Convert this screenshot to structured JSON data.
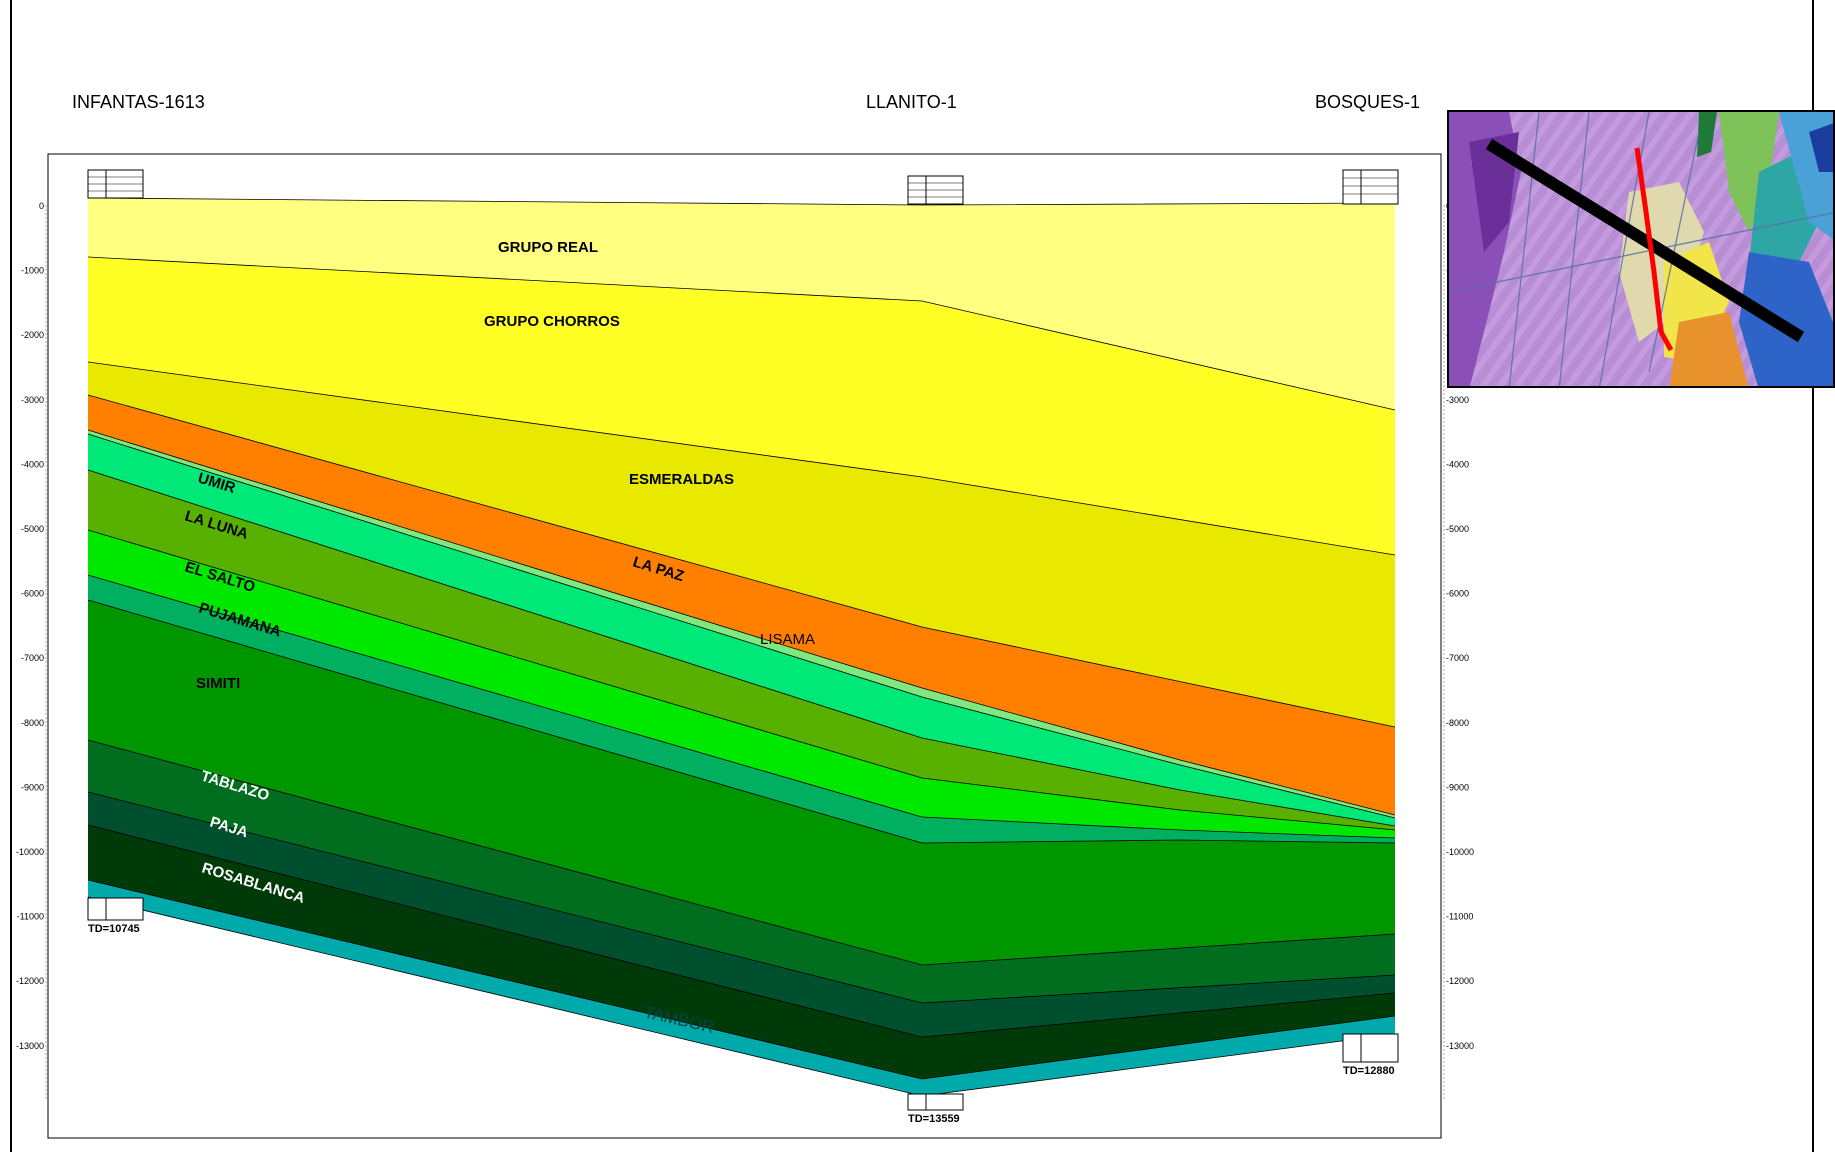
{
  "wells": [
    {
      "name": "INFANTAS-1613",
      "td_label": "TD=10745"
    },
    {
      "name": "LLANITO-1",
      "td_label": "TD=13559"
    },
    {
      "name": "BOSQUES-1",
      "td_label": "TD=12880"
    }
  ],
  "depth_ticks": [
    "0",
    "-1000",
    "-2000",
    "-3000",
    "-4000",
    "-5000",
    "-6000",
    "-7000",
    "-8000",
    "-9000",
    "-10000",
    "-11000",
    "-12000",
    "-13000"
  ],
  "formations": [
    {
      "name": "GRUPO REAL",
      "color": "#FFFF80"
    },
    {
      "name": "GRUPO CHORROS",
      "color": "#FFFF26"
    },
    {
      "name": "ESMERALDAS",
      "color": "#E8E800"
    },
    {
      "name": "LA PAZ",
      "color": "#FF7F00"
    },
    {
      "name": "LISAMA",
      "color": "#80E880"
    },
    {
      "name": "UMIR",
      "color": "#00E878"
    },
    {
      "name": "LA LUNA",
      "color": "#58B000"
    },
    {
      "name": "EL SALTO",
      "color": "#00E800"
    },
    {
      "name": "PUJAMANA",
      "color": "#00B060"
    },
    {
      "name": "SIMITI",
      "color": "#009600"
    },
    {
      "name": "TABLAZO",
      "color": "#006E1E"
    },
    {
      "name": "PAJA",
      "color": "#005030"
    },
    {
      "name": "ROSABLANCA",
      "color": "#003A08"
    },
    {
      "name": "TAMBOR",
      "color": "#00AAAA"
    }
  ],
  "map_inset": {
    "section_line_color": "#000000",
    "fault_color": "#FF0000"
  }
}
